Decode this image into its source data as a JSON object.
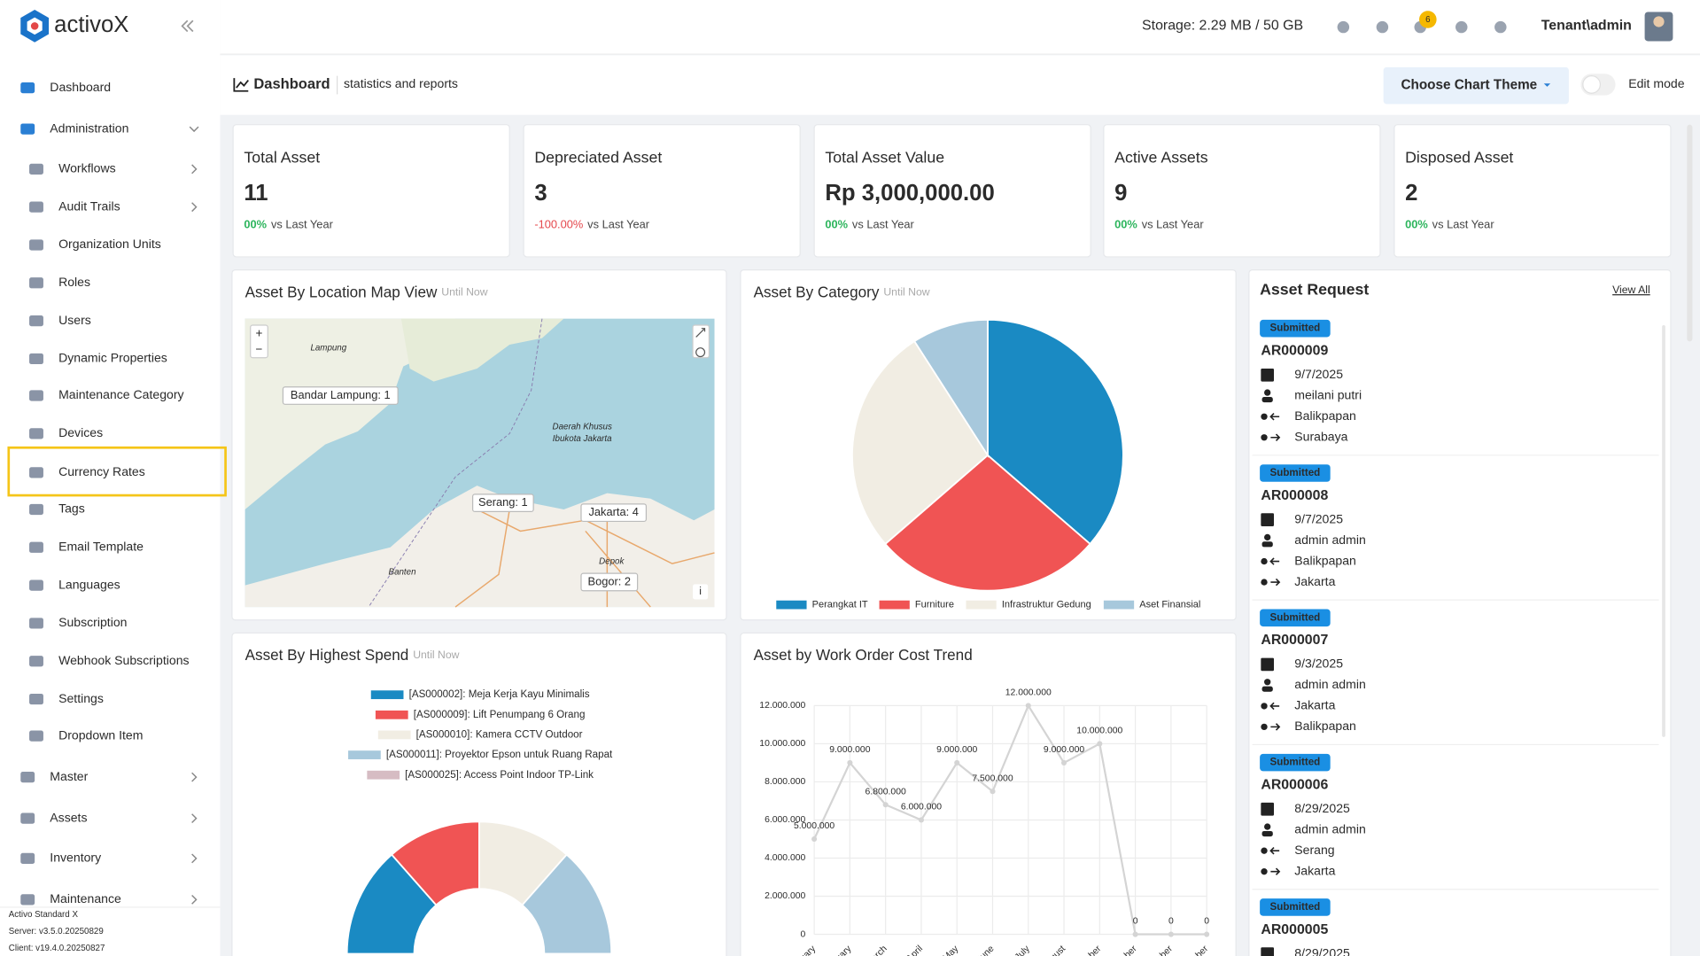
{
  "brand": "activoX",
  "header": {
    "storage": "Storage: 2.29 MB / 50 GB",
    "notification_count": "6",
    "user": "Tenant\\admin"
  },
  "sidebar": {
    "items": [
      "Dashboard",
      "Administration",
      "Workflows",
      "Audit Trails",
      "Organization Units",
      "Roles",
      "Users",
      "Dynamic Properties",
      "Maintenance Category",
      "Devices",
      "Currency Rates",
      "Tags",
      "Email Template",
      "Languages",
      "Subscription",
      "Webhook Subscriptions",
      "Settings",
      "Dropdown Item",
      "Master",
      "Assets",
      "Inventory",
      "Maintenance"
    ],
    "footer": [
      "Activo Standard X",
      "Server: v3.5.0.20250829",
      "Client: v19.4.0.20250827"
    ]
  },
  "page": {
    "title": "Dashboard",
    "subtitle": "statistics and reports",
    "theme_button": "Choose Chart Theme",
    "edit_mode": "Edit mode"
  },
  "kpis": [
    {
      "title": "Total Asset",
      "value": "11",
      "change": "00%",
      "suffix": "vs Last Year"
    },
    {
      "title": "Depreciated Asset",
      "value": "3",
      "change": "-100.00%",
      "suffix": "vs Last Year"
    },
    {
      "title": "Total Asset Value",
      "value": "Rp 3,000,000.00",
      "change": "00%",
      "suffix": "vs Last Year"
    },
    {
      "title": "Active Assets",
      "value": "9",
      "change": "00%",
      "suffix": "vs Last Year"
    },
    {
      "title": "Disposed Asset",
      "value": "2",
      "change": "00%",
      "suffix": "vs Last Year"
    }
  ],
  "map": {
    "title": "Asset By Location Map View",
    "subtitle": "Until Now",
    "markers": [
      "Bandar Lampung: 1",
      "Serang: 1",
      "Jakarta: 4",
      "Bogor: 2"
    ],
    "place_names": [
      "Lampung",
      "Banten",
      "Depok",
      "Daerah Khusus",
      "Ibukota Jakarta"
    ],
    "controls": [
      "+",
      "−",
      "i"
    ]
  },
  "chart_data": [
    {
      "type": "pie",
      "title": "Asset By Category",
      "subtitle": "Until Now",
      "categories": [
        "Perangkat IT",
        "Furniture",
        "Infrastruktur Gedung",
        "Aset Finansial"
      ],
      "values": [
        4,
        3,
        3,
        1
      ],
      "colors": [
        "#1a8ac3",
        "#f05454",
        "#f1ede3",
        "#a7c8dc"
      ]
    },
    {
      "type": "half-donut",
      "title": "Asset By Highest Spend",
      "subtitle": "Until Now",
      "categories": [
        "[AS000002]: Meja Kerja Kayu Minimalis",
        "[AS000009]: Lift Penumpang 6 Orang",
        "[AS000010]: Kamera CCTV Outdoor",
        "[AS000011]: Proyektor Epson untuk Ruang Rapat",
        "[AS000025]: Access Point Indoor TP-Link"
      ],
      "values": [
        27,
        23,
        23,
        27,
        0
      ],
      "colors": [
        "#1a8ac3",
        "#f05454",
        "#f1ede3",
        "#a7c8dc",
        "#d6bcc3"
      ]
    },
    {
      "type": "line",
      "title": "Asset by Work Order Cost Trend",
      "categories": [
        "January",
        "February",
        "March",
        "April",
        "May",
        "June",
        "July",
        "August",
        "September",
        "October",
        "November",
        "December"
      ],
      "series": [
        {
          "color": "#d4d4d4",
          "values": [
            5000000,
            9000000,
            6800000,
            6000000,
            9000000,
            7500000,
            12000000,
            9000000,
            10000000,
            0,
            0,
            0
          ],
          "value_labels": [
            "5.000.000",
            "9.000.000",
            "6.800.000",
            "6.000.000",
            "9.000.000",
            "7.500.000",
            "12.000.000",
            "9.000.000",
            "10.000.000",
            "0",
            "0",
            "0"
          ]
        }
      ],
      "ylim": [
        0,
        12000000
      ],
      "yticks": [
        0,
        {
          "value": 2000000,
          "label": "2.000.000"
        },
        {
          "value": 4000000,
          "label": "4.000.000"
        },
        {
          "value": 6000000,
          "label": "6.000.000"
        },
        {
          "value": 8000000,
          "label": "8.000.000"
        },
        {
          "value": 10000000,
          "label": "10.000.000"
        },
        {
          "value": 12000000,
          "label": "12.000.000"
        }
      ],
      "grid": true
    }
  ],
  "asset_request": {
    "title": "Asset Request",
    "link": "View All",
    "items": [
      {
        "status": "Submitted",
        "id": "AR000009",
        "date": "9/7/2025",
        "requester": "meilani putri",
        "from": "Balikpapan",
        "to": "Surabaya"
      },
      {
        "status": "Submitted",
        "id": "AR000008",
        "date": "9/7/2025",
        "requester": "admin admin",
        "from": "Balikpapan",
        "to": "Jakarta"
      },
      {
        "status": "Submitted",
        "id": "AR000007",
        "date": "9/3/2025",
        "requester": "admin admin",
        "from": "Jakarta",
        "to": "Balikpapan"
      },
      {
        "status": "Submitted",
        "id": "AR000006",
        "date": "8/29/2025",
        "requester": "admin admin",
        "from": "Serang",
        "to": "Jakarta"
      },
      {
        "status": "Submitted",
        "id": "AR000005",
        "date": "8/29/2025"
      }
    ]
  }
}
